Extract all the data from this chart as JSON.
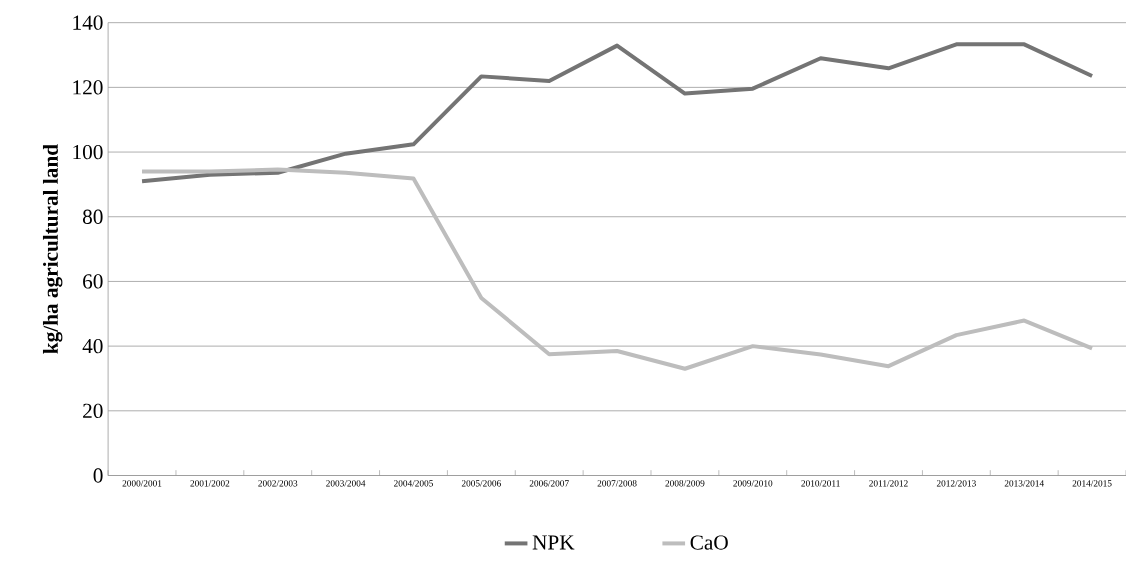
{
  "chart_data": {
    "type": "line",
    "ylabel": "kg/ha agricultural  land",
    "categories": [
      "2000/2001",
      "2001/2002",
      "2002/2003",
      "2003/2004",
      "2004/2005",
      "2005/2006",
      "2006/2007",
      "2007/2008",
      "2008/2009",
      "2009/2010",
      "2010/2011",
      "2011/2012",
      "2012/2013",
      "2013/2014",
      "2014/2015"
    ],
    "series": [
      {
        "name": "NPK",
        "color": "#747474",
        "values": [
          91,
          93,
          93.6,
          99.5,
          102.4,
          123.4,
          122,
          132.9,
          118.1,
          119.6,
          129,
          125.9,
          133.3,
          133.3,
          123.5
        ]
      },
      {
        "name": "CaO",
        "color": "#bdbdbd",
        "values": [
          94,
          94,
          94.6,
          93.6,
          91.8,
          54.9,
          37.5,
          38.5,
          33,
          40,
          37.4,
          33.8,
          43.4,
          47.9,
          39.3
        ]
      }
    ],
    "ylim": [
      0,
      140
    ],
    "yticks": [
      0,
      20,
      40,
      60,
      80,
      100,
      120,
      140
    ],
    "grid": "y",
    "legend": "bottom",
    "marker": "none",
    "line_style": "solid"
  }
}
